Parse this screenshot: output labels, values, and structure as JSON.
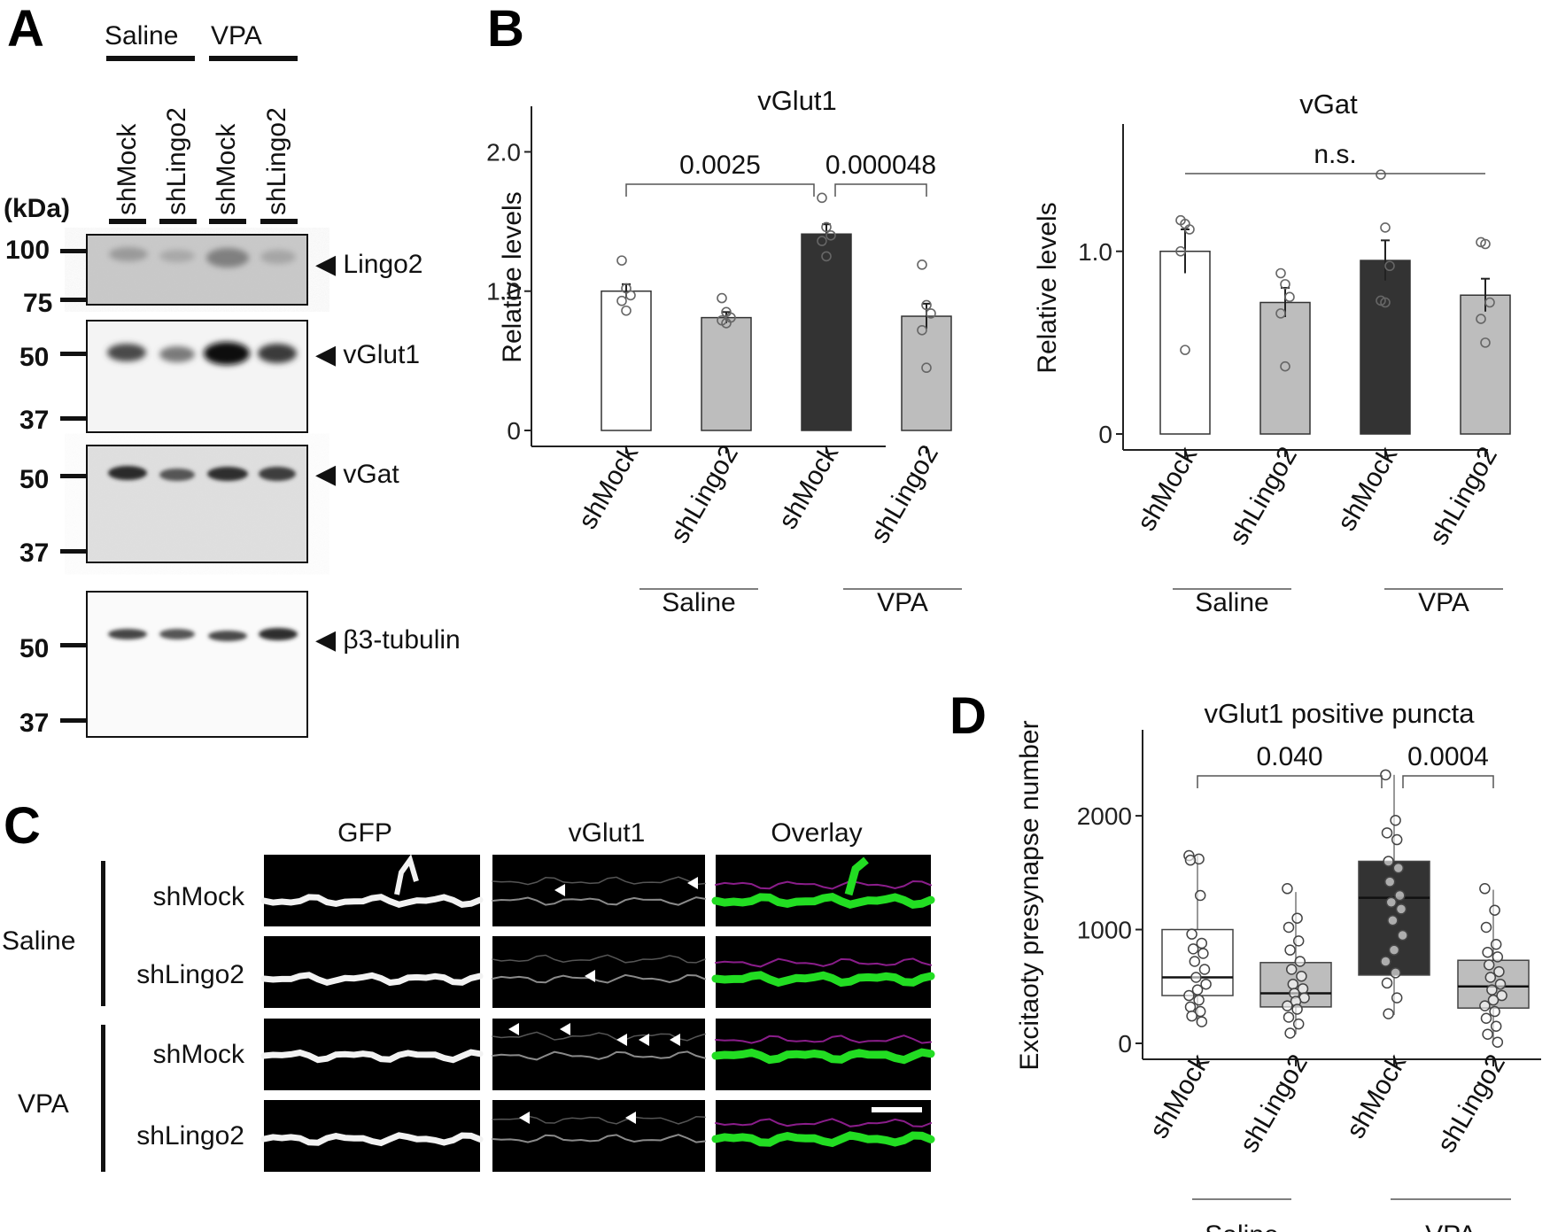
{
  "panel_letters": {
    "a": "A",
    "b": "B",
    "c": "C",
    "d": "D"
  },
  "panel_a": {
    "groups": [
      "Saline",
      "VPA"
    ],
    "lanes": [
      "shMock",
      "shLingo2",
      "shMock",
      "shLingo2"
    ],
    "kda_label": "(kDa)",
    "blots": [
      {
        "name": "Lingo2",
        "label": "◀ Lingo2",
        "markers": [
          "100",
          "75"
        ]
      },
      {
        "name": "vGlut1",
        "label": "◀ vGlut1",
        "markers": [
          "50",
          "37"
        ]
      },
      {
        "name": "vGat",
        "label": "◀ vGat",
        "markers": [
          "50",
          "37"
        ]
      },
      {
        "name": "b3-tubulin",
        "label": "◀ β3-tubulin",
        "markers": [
          "50",
          "37"
        ]
      }
    ]
  },
  "panel_c": {
    "columns": [
      {
        "label": "GFP",
        "color": "#33dd33"
      },
      {
        "label": "vGlut1",
        "color": "#dd33dd"
      },
      {
        "label": "Overlay",
        "color": "#111111"
      }
    ],
    "groups": [
      "Saline",
      "VPA"
    ],
    "rows": [
      "shMock",
      "shLingo2",
      "shMock",
      "shLingo2"
    ]
  },
  "chart_data": [
    {
      "id": "vglut1",
      "type": "bar",
      "title": "vGlut1",
      "ylabel": "Relative levels",
      "ylim": [
        0,
        2.2
      ],
      "yticks": [
        "0",
        "1.0",
        "2.0"
      ],
      "categories": [
        "shMock",
        "shLingo2",
        "shMock",
        "shLingo2"
      ],
      "groups": [
        "Saline",
        "VPA"
      ],
      "values": [
        1.0,
        0.81,
        1.41,
        0.82
      ],
      "errors": [
        0.05,
        0.04,
        0.07,
        0.09
      ],
      "fill_colors": [
        "#ffffff",
        "#bdbdbd",
        "#333333",
        "#bdbdbd"
      ],
      "points": [
        [
          1.22,
          1.02,
          0.97,
          0.93,
          0.86
        ],
        [
          0.95,
          0.85,
          0.81,
          0.79,
          0.77
        ],
        [
          1.67,
          1.46,
          1.4,
          1.36,
          1.25
        ],
        [
          1.19,
          0.9,
          0.84,
          0.72,
          0.45
        ]
      ],
      "comparisons": [
        {
          "from": 0,
          "to": 2,
          "label": "0.0025"
        },
        {
          "from": 2,
          "to": 3,
          "label": "0.000048"
        }
      ]
    },
    {
      "id": "vgat",
      "type": "bar",
      "title": "vGat",
      "ylabel": "Relative levels",
      "ylim": [
        0,
        1.6
      ],
      "yticks": [
        "0",
        "1.0"
      ],
      "categories": [
        "shMock",
        "shLingo2",
        "shMock",
        "shLingo2"
      ],
      "groups": [
        "Saline",
        "VPA"
      ],
      "values": [
        1.0,
        0.72,
        0.95,
        0.76
      ],
      "errors": [
        0.12,
        0.08,
        0.11,
        0.09
      ],
      "fill_colors": [
        "#ffffff",
        "#bdbdbd",
        "#333333",
        "#bdbdbd"
      ],
      "points": [
        [
          1.17,
          1.15,
          1.12,
          1.0,
          0.46
        ],
        [
          0.88,
          0.82,
          0.75,
          0.66,
          0.37
        ],
        [
          1.42,
          1.13,
          0.92,
          0.73,
          0.72
        ],
        [
          1.05,
          1.04,
          0.72,
          0.63,
          0.5
        ]
      ],
      "comparisons": [
        {
          "from": 0,
          "to": 3,
          "label": "n.s."
        }
      ]
    },
    {
      "id": "puncta",
      "type": "box",
      "title": "vGlut1 positive puncta",
      "ylabel": "Excitaoty presynapse number",
      "ylim": [
        0,
        2600
      ],
      "yticks": [
        "0",
        "1000",
        "2000"
      ],
      "categories": [
        "shMock",
        "shLingo2",
        "shMock",
        "shLingo2"
      ],
      "groups": [
        "Saline",
        "VPA"
      ],
      "fill_colors": [
        "#ffffff",
        "#bdbdbd",
        "#333333",
        "#bdbdbd"
      ],
      "boxes": [
        {
          "min": 180,
          "q1": 420,
          "median": 580,
          "q3": 1000,
          "max": 1650
        },
        {
          "min": 80,
          "q1": 320,
          "median": 440,
          "q3": 710,
          "max": 1330
        },
        {
          "min": 250,
          "q1": 600,
          "median": 1280,
          "q3": 1600,
          "max": 2360
        },
        {
          "min": 10,
          "q1": 310,
          "median": 500,
          "q3": 730,
          "max": 1350
        }
      ],
      "points": [
        [
          1650,
          1620,
          1610,
          1300,
          960,
          880,
          830,
          790,
          720,
          650,
          580,
          520,
          470,
          420,
          380,
          320,
          280,
          240,
          190
        ],
        [
          1360,
          1100,
          1020,
          900,
          820,
          720,
          650,
          590,
          520,
          480,
          440,
          400,
          370,
          330,
          300,
          230,
          170,
          90
        ],
        [
          2360,
          1960,
          1850,
          1790,
          1600,
          1540,
          1420,
          1300,
          1240,
          1180,
          1080,
          950,
          820,
          720,
          620,
          530,
          400,
          260
        ],
        [
          1360,
          1170,
          1020,
          870,
          800,
          760,
          690,
          630,
          580,
          520,
          470,
          420,
          380,
          330,
          280,
          220,
          150,
          80,
          10
        ]
      ],
      "comparisons": [
        {
          "from": 0,
          "to": 2,
          "label": "0.040"
        },
        {
          "from": 2,
          "to": 3,
          "label": "0.0004"
        }
      ]
    }
  ]
}
